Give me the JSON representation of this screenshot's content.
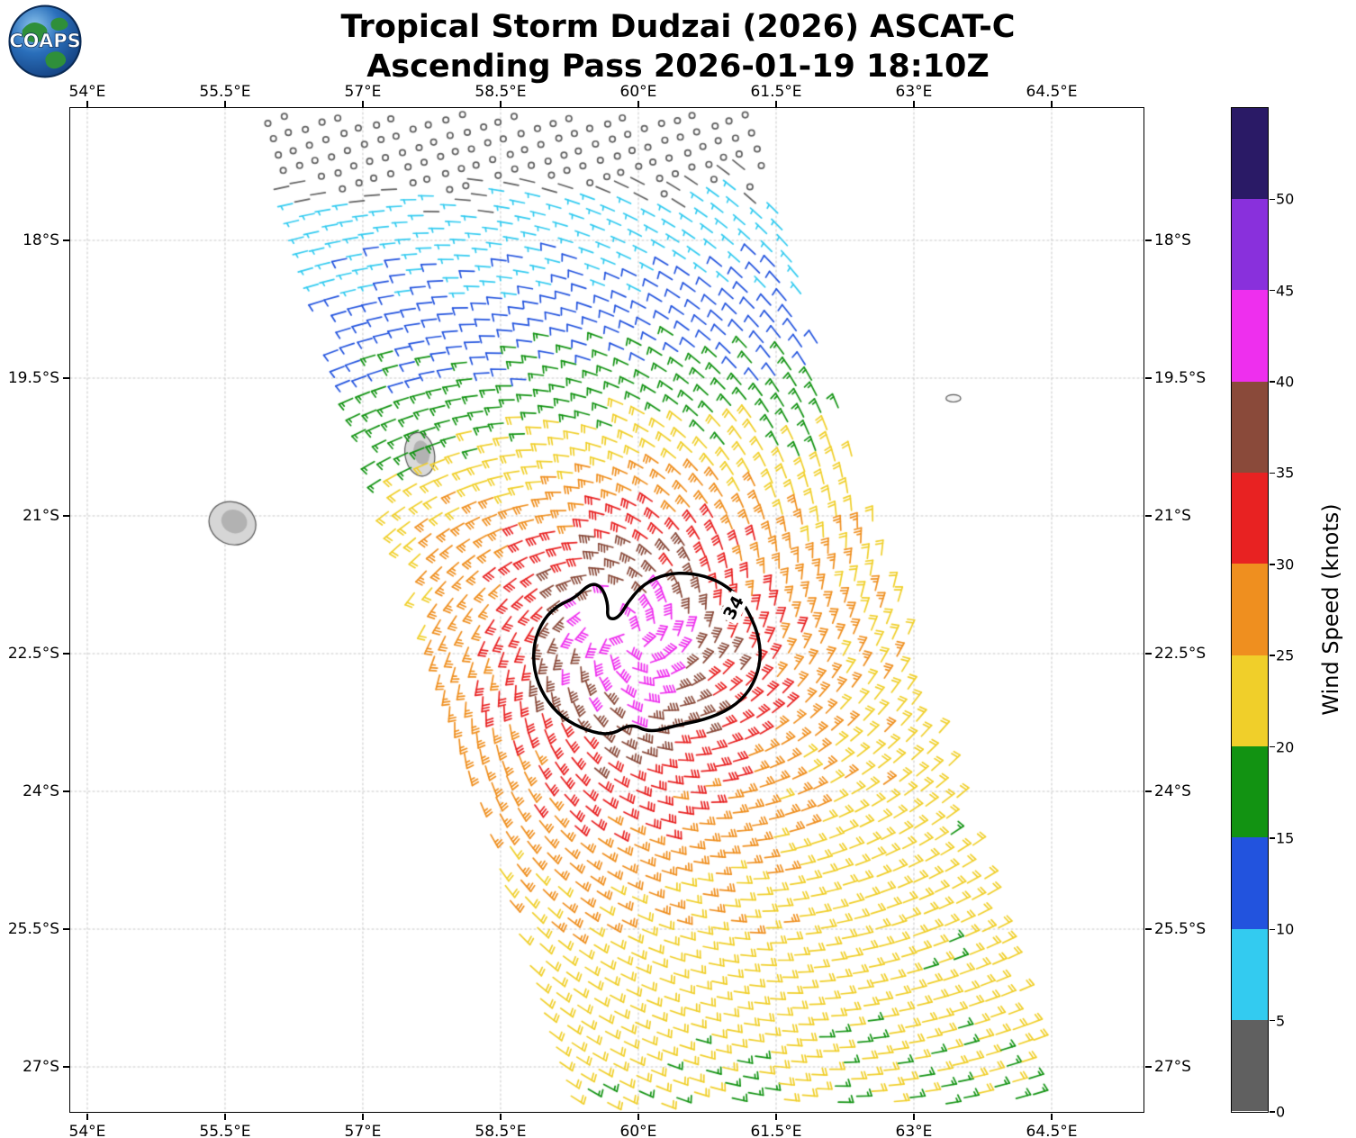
{
  "header": {
    "title_line1": "Tropical Storm Dudzai (2026) ASCAT-C",
    "title_line2": "Ascending Pass 2026-01-19 18:10Z",
    "logo_text": "COAPS"
  },
  "chart_data": {
    "type": "wind_barb_map",
    "storm_name": "Dudzai",
    "storm_year": "2026",
    "satellite": "ASCAT-C",
    "pass_type": "Ascending",
    "pass_datetime_utc": "2026-01-19 18:10Z",
    "x_axis": {
      "unit": "degrees east",
      "tick_labels": [
        "54°E",
        "55.5°E",
        "57°E",
        "58.5°E",
        "60°E",
        "61.5°E",
        "63°E",
        "64.5°E"
      ],
      "tick_values": [
        54,
        55.5,
        57,
        58.5,
        60,
        61.5,
        63,
        64.5
      ],
      "range": [
        53.814,
        65.5
      ]
    },
    "y_axis": {
      "unit": "degrees south",
      "tick_labels": [
        "18°S",
        "19.5°S",
        "21°S",
        "22.5°S",
        "24°S",
        "25.5°S",
        "27°S"
      ],
      "tick_values": [
        18,
        19.5,
        21,
        22.5,
        24,
        25.5,
        27
      ],
      "range": [
        16.559,
        27.49
      ]
    },
    "grid": {
      "visible": true,
      "style": "dashed"
    },
    "colorbar": {
      "label": "Wind Speed (knots)",
      "tick_labels": [
        "0",
        "5",
        "10",
        "15",
        "20",
        "25",
        "30",
        "35",
        "40",
        "45",
        "50"
      ],
      "tick_values": [
        0,
        5,
        10,
        15,
        20,
        25,
        30,
        35,
        40,
        45,
        50
      ],
      "level_max": 55,
      "band_colors_low_to_high": [
        "#606060",
        "#33CBF0",
        "#2253DE",
        "#129312",
        "#F0CF2A",
        "#EF8F1F",
        "#E82222",
        "#8A4A3A",
        "#EE2FEE",
        "#8930DC",
        "#2A1A66"
      ]
    },
    "storm_center": {
      "lon": 59.9,
      "lat_s": 22.35
    },
    "contour_34kt": {
      "label": "34",
      "knots": 34,
      "label_pos": [
        61.04,
        22.0
      ],
      "label_rotation_deg": -62,
      "points_lon_lat_s": [
        [
          59.3,
          21.9
        ],
        [
          59.48,
          21.73
        ],
        [
          59.6,
          21.77
        ],
        [
          59.67,
          21.95
        ],
        [
          59.66,
          22.12
        ],
        [
          59.78,
          22.12
        ],
        [
          59.9,
          21.92
        ],
        [
          60.06,
          21.74
        ],
        [
          60.3,
          21.63
        ],
        [
          60.58,
          21.62
        ],
        [
          60.86,
          21.7
        ],
        [
          61.08,
          21.86
        ],
        [
          61.22,
          22.08
        ],
        [
          61.32,
          22.34
        ],
        [
          61.33,
          22.62
        ],
        [
          61.22,
          22.9
        ],
        [
          61.01,
          23.1
        ],
        [
          60.72,
          23.22
        ],
        [
          60.42,
          23.28
        ],
        [
          60.12,
          23.36
        ],
        [
          59.92,
          23.26
        ],
        [
          59.7,
          23.39
        ],
        [
          59.44,
          23.34
        ],
        [
          59.17,
          23.2
        ],
        [
          58.97,
          22.97
        ],
        [
          58.86,
          22.68
        ],
        [
          58.86,
          22.38
        ],
        [
          58.97,
          22.12
        ],
        [
          59.13,
          21.97
        ]
      ]
    },
    "islands": [
      {
        "id": "reunion",
        "lon": 55.58,
        "lat_s": 21.08,
        "rx_deg": 0.26,
        "ry_deg": 0.23,
        "rot": 25,
        "fill": "#d6d6d6",
        "inner": true
      },
      {
        "id": "mauritius",
        "lon": 57.62,
        "lat_s": 20.33,
        "rx_deg": 0.16,
        "ry_deg": 0.24,
        "rot": -10,
        "fill": "#d9d9d9",
        "inner": true
      },
      {
        "id": "rodrigues",
        "lon": 63.43,
        "lat_s": 19.72,
        "rx_deg": 0.08,
        "ry_deg": 0.04,
        "rot": 0,
        "fill": "#f5f5f5",
        "inner": false
      }
    ],
    "swath": {
      "origin_lon": 58.95,
      "origin_lat_s": 18.0,
      "axis_dlon": 2.8,
      "axis_dlat": 9.0,
      "half_width_deg": 2.65,
      "grid_step_deg": 0.185,
      "s_min": -2.3,
      "s_max": 10.7,
      "lat_clip": [
        16.63,
        27.4
      ]
    },
    "wind_field_model": {
      "center_lon": 59.9,
      "center_lat_s": 22.35,
      "background_knots": 21,
      "peak_added_knots": 25,
      "radial_scale_deg": 1.6,
      "radial_power": 1.4,
      "north_falloff_per_deg": 4.2,
      "north_falloff_start_deg": 1.2,
      "calm_extra_falloff_start_deg": 4.6,
      "calm_extra_falloff_per_deg": 6,
      "south_falloff_per_deg": 1.5,
      "south_falloff_start_deg": 4.2,
      "south_stretch": 0.8,
      "inflow_angle_deg": 25,
      "max_knots": 44.5,
      "eye_hole": {
        "lon_min": 59.5,
        "lon_max": 59.92,
        "lat_min": 21.8,
        "lat_max": 22.2
      }
    }
  }
}
